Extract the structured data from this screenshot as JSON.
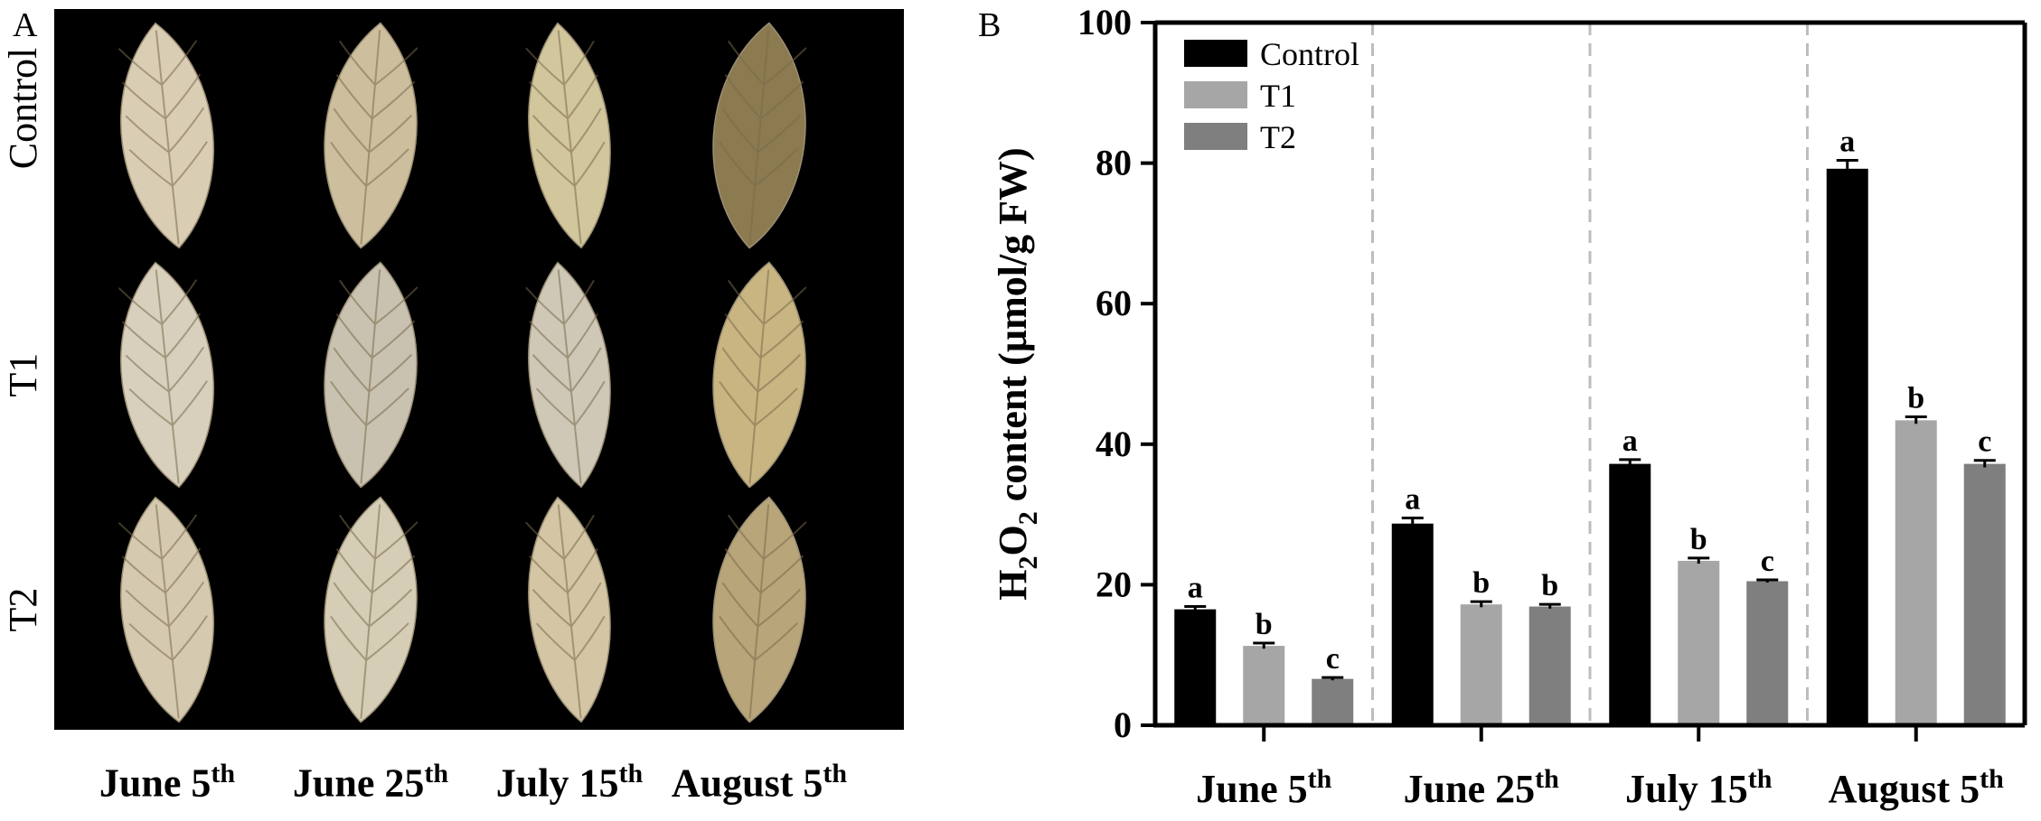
{
  "panel_a": {
    "letter": "A",
    "row_labels": [
      "Control",
      "T1",
      "T2"
    ],
    "column_labels": [
      {
        "main": "June 5",
        "sup": "th"
      },
      {
        "main": "June 25",
        "sup": "th"
      },
      {
        "main": "July 15",
        "sup": "th"
      },
      {
        "main": "August 5",
        "sup": "th"
      }
    ],
    "leaf_colors": {
      "Control": [
        "#d9cdb4",
        "#cdbf9e",
        "#d2c69c",
        "#8c7a50"
      ],
      "T1": [
        "#d8d0bc",
        "#c9c2b0",
        "#cfc8b7",
        "#c9b582"
      ],
      "T2": [
        "#d5cab0",
        "#d6cdb6",
        "#d4c6a4",
        "#b9a57a"
      ]
    }
  },
  "panel_b": {
    "letter": "B"
  },
  "chart_data": {
    "type": "bar",
    "title": "",
    "ylabel_parts": {
      "pre": "H",
      "sub1": "2",
      "mid": "O",
      "sub2": "2",
      "post": " content (µmol/g FW)"
    },
    "xlabel": "",
    "ylim": [
      0,
      100
    ],
    "yticks": [
      0,
      20,
      40,
      60,
      80,
      100
    ],
    "categories": [
      {
        "main": "June 5",
        "sup": "th"
      },
      {
        "main": "June 25",
        "sup": "th"
      },
      {
        "main": "July 15",
        "sup": "th"
      },
      {
        "main": "August 5",
        "sup": "th"
      }
    ],
    "series": [
      {
        "name": "Control",
        "color": "#000000",
        "values": [
          16.5,
          28.7,
          37.2,
          79.2
        ],
        "errors": [
          0.4,
          0.8,
          0.6,
          1.2
        ],
        "letters": [
          "a",
          "a",
          "a",
          "a"
        ]
      },
      {
        "name": "T1",
        "color": "#a6a6a6",
        "values": [
          11.3,
          17.2,
          23.4,
          43.4
        ],
        "errors": [
          0.4,
          0.4,
          0.4,
          0.5
        ],
        "letters": [
          "b",
          "b",
          "b",
          "b"
        ]
      },
      {
        "name": "T2",
        "color": "#7f7f7f",
        "values": [
          6.6,
          16.9,
          20.5,
          37.2
        ],
        "errors": [
          0.2,
          0.3,
          0.2,
          0.5
        ],
        "letters": [
          "c",
          "b",
          "c",
          "c"
        ]
      }
    ],
    "legend_position": "top-left",
    "grid": false,
    "separators": "dashed vertical lines between groups"
  }
}
